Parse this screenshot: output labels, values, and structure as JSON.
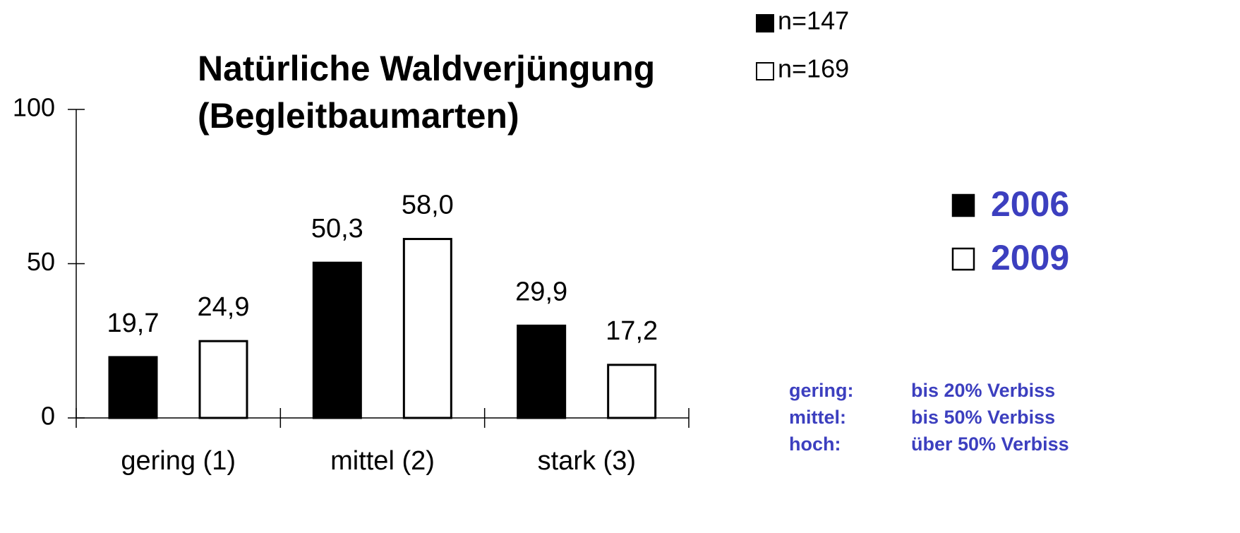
{
  "chart_data": {
    "type": "bar",
    "title_lines": [
      "Natürliche Waldverjüngung",
      "(Begleitbaumarten)"
    ],
    "categories": [
      "gering (1)",
      "mittel (2)",
      "stark (3)"
    ],
    "series": [
      {
        "name": "2006",
        "color": "#000000",
        "values": [
          19.7,
          50.3,
          29.9
        ],
        "value_labels": [
          "19,7",
          "50,3",
          "29,9"
        ],
        "n_label": "n=147"
      },
      {
        "name": "2009",
        "color": "#ffffff",
        "values": [
          24.9,
          58.0,
          17.2
        ],
        "value_labels": [
          "24,9",
          "58,0",
          "17,2"
        ],
        "n_label": "n=169"
      }
    ],
    "ylim": [
      0,
      100
    ],
    "yticks": [
      0,
      50,
      100
    ],
    "legend_color": "#3c3fbf",
    "notes": [
      [
        "gering:",
        "bis 20% Verbiss"
      ],
      [
        "mittel:",
        "bis 50% Verbiss"
      ],
      [
        "hoch:",
        "über 50% Verbiss"
      ]
    ]
  }
}
